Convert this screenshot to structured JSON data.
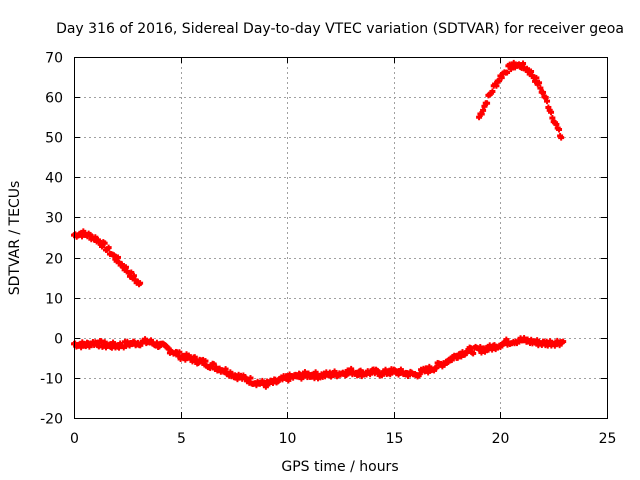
{
  "chart_data": {
    "type": "scatter",
    "title": "Day 316 of 2016, Sidereal Day-to-day VTEC variation (SDTVAR) for receiver geoa",
    "xlabel": "GPS time / hours",
    "ylabel": "SDTVAR / TECUs",
    "xlim": [
      0,
      25
    ],
    "ylim": [
      -20,
      70
    ],
    "xticks": [
      0,
      5,
      10,
      15,
      20,
      25
    ],
    "yticks": [
      -20,
      -10,
      0,
      10,
      20,
      30,
      40,
      50,
      60,
      70
    ],
    "grid": true,
    "color": "#ff0000",
    "series": [
      {
        "name": "trace-early-high",
        "x": [
          0.0,
          0.25,
          0.5,
          0.75,
          1.0,
          1.25,
          1.5,
          1.75,
          2.0,
          2.25,
          2.5,
          2.75,
          3.0,
          3.15
        ],
        "y": [
          25.6,
          26.0,
          25.9,
          25.4,
          24.8,
          23.8,
          22.5,
          21.0,
          19.6,
          18.2,
          16.8,
          15.2,
          13.8,
          12.9
        ]
      },
      {
        "name": "trace-late-high",
        "x": [
          19.0,
          19.25,
          19.5,
          19.75,
          20.0,
          20.25,
          20.5,
          20.75,
          21.0,
          21.25,
          21.5,
          21.75,
          22.0,
          22.25,
          22.5,
          22.75,
          22.9
        ],
        "y": [
          55.0,
          57.8,
          60.5,
          63.0,
          65.0,
          66.6,
          67.6,
          68.0,
          67.8,
          67.0,
          65.6,
          63.6,
          61.0,
          58.0,
          54.6,
          51.2,
          49.4
        ]
      },
      {
        "name": "trace-main",
        "x": [
          0.0,
          0.5,
          1.0,
          1.5,
          2.0,
          2.5,
          3.0,
          3.5,
          4.0,
          4.5,
          5.0,
          5.5,
          6.0,
          6.5,
          7.0,
          7.5,
          8.0,
          8.5,
          9.0,
          9.5,
          10.0,
          10.5,
          11.0,
          11.5,
          12.0,
          12.5,
          13.0,
          13.5,
          14.0,
          14.5,
          15.0,
          15.5,
          16.0,
          16.5,
          17.0,
          17.5,
          18.0,
          18.5,
          19.0,
          19.5,
          20.0,
          20.5,
          21.0,
          21.5,
          22.0,
          22.5,
          23.0
        ],
        "y": [
          -1.5,
          -1.8,
          -1.2,
          -1.9,
          -2.0,
          -1.6,
          -1.2,
          -1.0,
          -1.8,
          -3.0,
          -4.5,
          -5.2,
          -6.0,
          -7.0,
          -8.0,
          -9.2,
          -10.2,
          -11.0,
          -11.6,
          -11.0,
          -10.0,
          -9.6,
          -9.2,
          -9.4,
          -9.2,
          -8.8,
          -8.4,
          -8.8,
          -8.6,
          -8.8,
          -8.4,
          -8.8,
          -9.2,
          -8.2,
          -7.2,
          -5.8,
          -4.2,
          -3.2,
          -3.0,
          -2.6,
          -1.6,
          -0.8,
          -0.6,
          -1.0,
          -1.4,
          -1.2,
          -1.0
        ]
      }
    ]
  }
}
